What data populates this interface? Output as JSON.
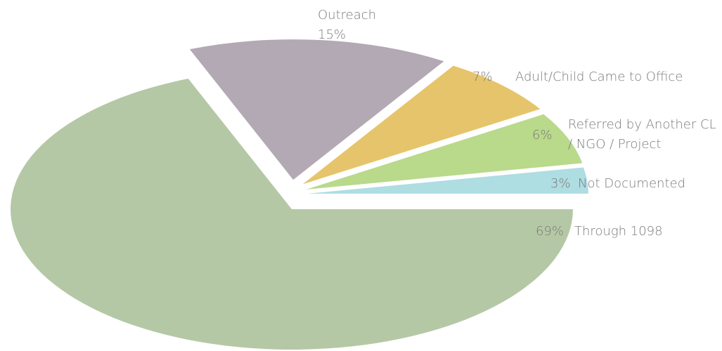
{
  "chart_data": {
    "type": "pie",
    "categories": [
      "Through 1098",
      "Outreach",
      "Adult/Child Came to Office",
      "Referred by Another CL / NGO / Project",
      "Not Documented"
    ],
    "values": [
      69,
      15,
      7,
      6,
      3
    ],
    "value_labels": [
      "69%",
      "15%",
      "7%",
      "6%",
      "3%"
    ],
    "colors": [
      "#b5c8a6",
      "#b3a9b4",
      "#e6c46b",
      "#b9d98b",
      "#aedde2"
    ]
  }
}
